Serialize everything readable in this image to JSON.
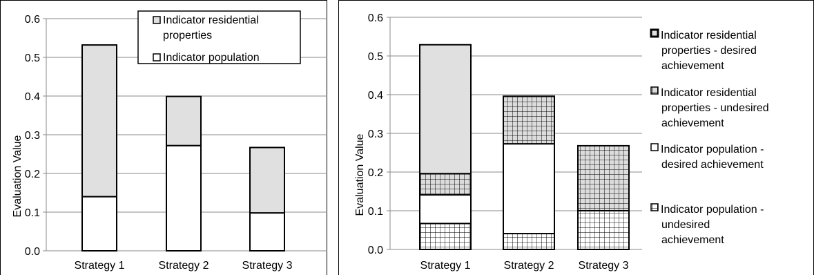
{
  "chart_data": [
    {
      "type": "bar",
      "stacked": true,
      "categories": [
        "Strategy 1",
        "Strategy 2",
        "Strategy 3"
      ],
      "ylabel": "Evaluation Value",
      "ylim": [
        0,
        0.6
      ],
      "yticks": [
        "0.0",
        "0.1",
        "0.2",
        "0.3",
        "0.4",
        "0.5",
        "0.6"
      ],
      "grid": true,
      "legend_position": "top-right",
      "series": [
        {
          "name": "Indicator population",
          "values": [
            0.14,
            0.272,
            0.098
          ],
          "fill": "#ffffff"
        },
        {
          "name": "Indicator residential properties",
          "values": [
            0.392,
            0.127,
            0.169
          ],
          "fill": "#e0e0e0"
        }
      ],
      "legend": [
        {
          "label": "Indicator residential",
          "fill": "#e0e0e0"
        },
        {
          "label": "properties",
          "fill": null
        },
        {
          "label": "Indicator population",
          "fill": "#ffffff"
        }
      ]
    },
    {
      "type": "bar",
      "stacked": true,
      "categories": [
        "Strategy 1",
        "Strategy 2",
        "Strategy 3"
      ],
      "ylabel": "Evaluation Value",
      "ylim": [
        0,
        0.6
      ],
      "yticks": [
        "0.0",
        "0.1",
        "0.2",
        "0.3",
        "0.4",
        "0.5",
        "0.6"
      ],
      "grid": true,
      "legend_position": "right",
      "series": [
        {
          "name": "Indicator population - undesired achievement",
          "values": [
            0.067,
            0.041,
            0.1
          ],
          "fill": "#ffffff",
          "pattern": "grid"
        },
        {
          "name": "Indicator population - desired achievement",
          "values": [
            0.074,
            0.232,
            0.0
          ],
          "fill": "#ffffff",
          "pattern": "none"
        },
        {
          "name": "Indicator residential properties - undesired achievement",
          "values": [
            0.055,
            0.123,
            0.168
          ],
          "fill": "#dcdcdc",
          "pattern": "grid"
        },
        {
          "name": "Indicator residential properties - desired achievement",
          "values": [
            0.333,
            0.0,
            0.0
          ],
          "fill": "#e0e0e0",
          "pattern": "none"
        }
      ],
      "legend": [
        {
          "lines": [
            "Indicator residential",
            "properties - desired",
            "achievement"
          ],
          "fill": "#e0e0e0",
          "pattern": "none"
        },
        {
          "lines": [
            "Indicator residential",
            "properties - undesired",
            "achievement"
          ],
          "fill": "#dcdcdc",
          "pattern": "grid"
        },
        {
          "lines": [
            "Indicator population -",
            "desired achievement"
          ],
          "fill": "#ffffff",
          "pattern": "none"
        },
        {
          "lines": [
            "Indicator population -",
            "undesired",
            "achievement"
          ],
          "fill": "#ffffff",
          "pattern": "grid"
        }
      ]
    }
  ]
}
